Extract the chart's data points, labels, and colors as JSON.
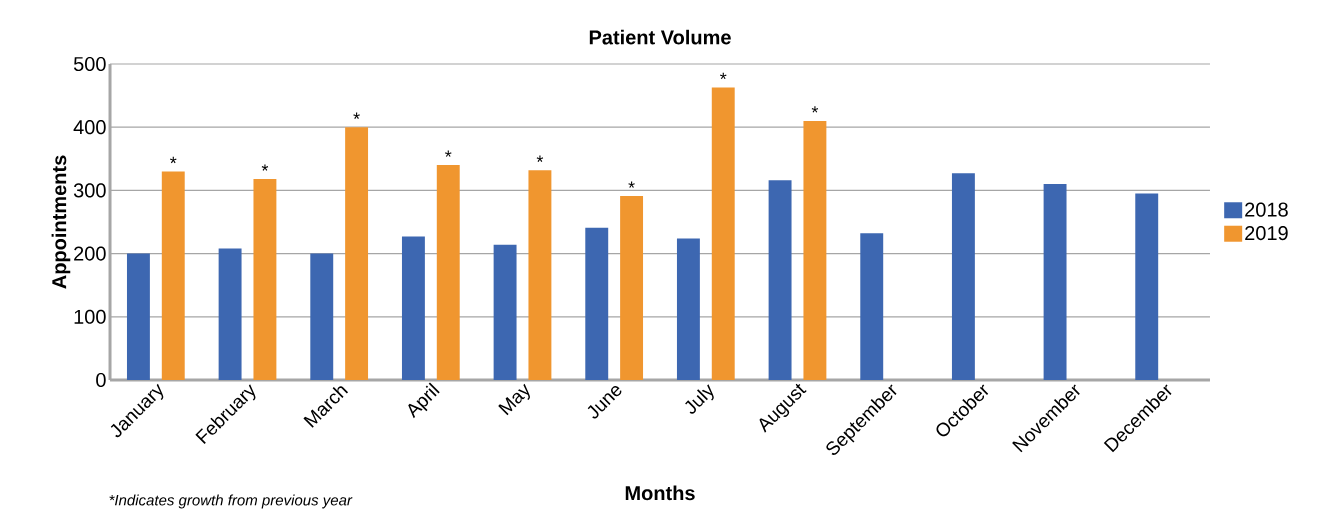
{
  "chart_data": {
    "type": "bar",
    "title": "Patient Volume",
    "xlabel": "Months",
    "ylabel": "Appointments",
    "categories": [
      "January",
      "February",
      "March",
      "April",
      "May",
      "June",
      "July",
      "August",
      "September",
      "October",
      "November",
      "December"
    ],
    "series": [
      {
        "name": "2018",
        "color": "#3d67b1",
        "values": [
          200,
          208,
          200,
          227,
          214,
          241,
          224,
          316,
          232,
          327,
          310,
          295
        ]
      },
      {
        "name": "2019",
        "color": "#f0962f",
        "values": [
          330,
          318,
          400,
          340,
          332,
          291,
          463,
          410,
          null,
          null,
          null,
          null
        ],
        "value_labels": [
          "*",
          "*",
          "*",
          "*",
          "*",
          "*",
          "*",
          "*",
          null,
          null,
          null,
          null
        ]
      }
    ],
    "ylim": [
      0,
      500
    ],
    "yticks": [
      0,
      100,
      200,
      300,
      400,
      500
    ],
    "grid": "y",
    "legend": "right",
    "annotations": [
      "*Indicates growth from previous year"
    ]
  }
}
